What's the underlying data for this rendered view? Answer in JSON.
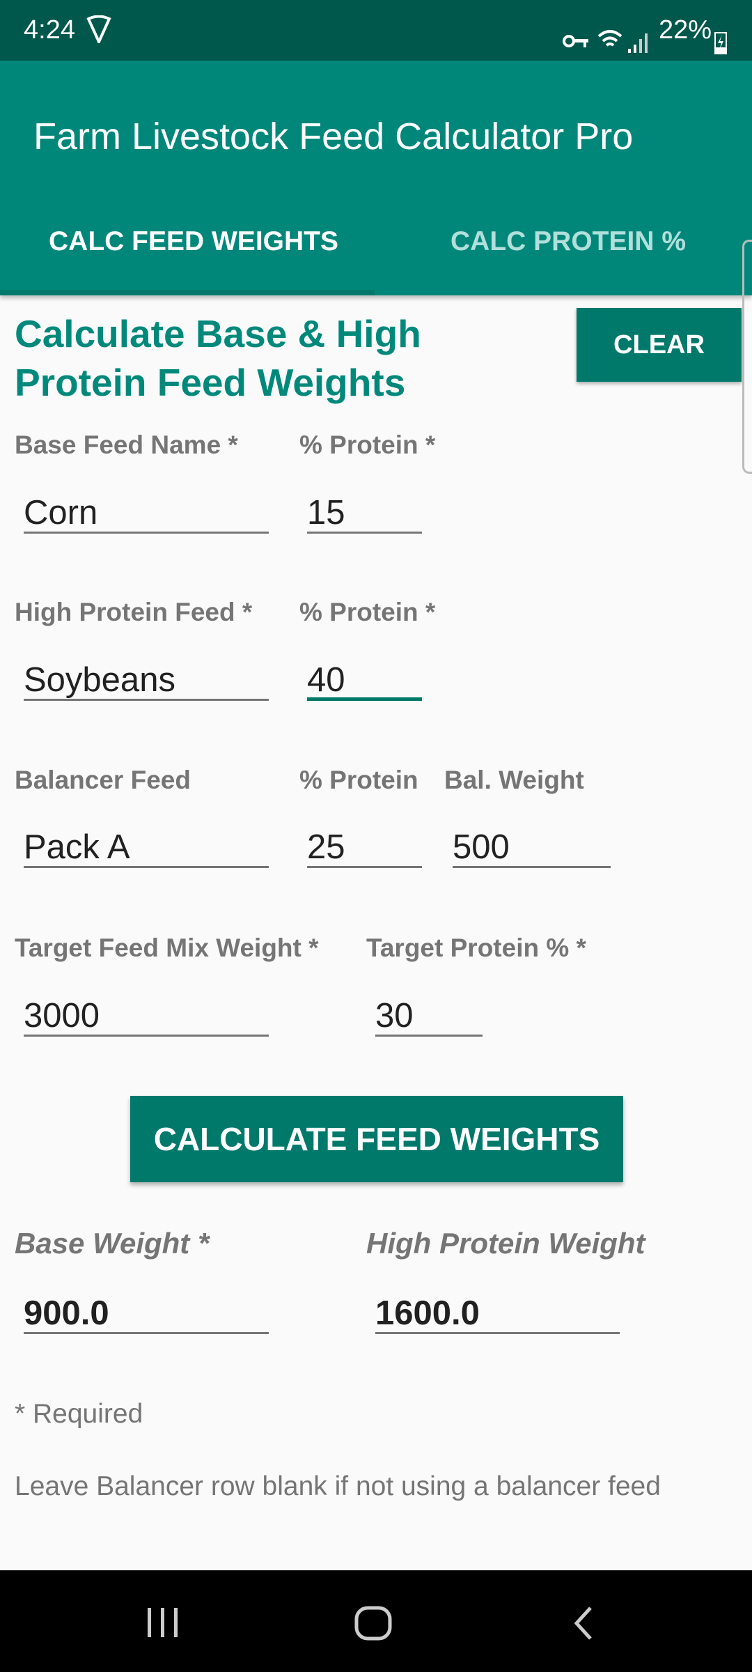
{
  "status_bar": {
    "time": "4:24",
    "battery": "22%",
    "icons": [
      "vpn-shield-icon",
      "key-icon",
      "wifi-icon",
      "signal-icon",
      "battery-charging-icon"
    ]
  },
  "app": {
    "title": "Farm Livestock Feed Calculator Pro",
    "accent": "#00877a"
  },
  "tabs": [
    {
      "label": "CALC FEED WEIGHTS",
      "selected": true
    },
    {
      "label": "CALC PROTEIN %",
      "selected": false
    }
  ],
  "form": {
    "heading": "Calculate Base & High Protein Feed Weights",
    "clear_label": "CLEAR",
    "base_feed_label": "Base Feed Name *",
    "base_feed_value": "Corn",
    "base_protein_label": "% Protein *",
    "base_protein_value": "15",
    "high_feed_label": "High Protein Feed *",
    "high_feed_value": "Soybeans",
    "high_protein_label": "% Protein *",
    "high_protein_value": "40",
    "balancer_label": "Balancer Feed",
    "balancer_value": "Pack A",
    "balancer_protein_label": "% Protein",
    "balancer_protein_value": "25",
    "bal_weight_label": "Bal. Weight",
    "bal_weight_value": "500",
    "target_weight_label": "Target Feed Mix Weight *",
    "target_weight_value": "3000",
    "target_protein_label": "Target Protein % *",
    "target_protein_value": "30",
    "calculate_label": "CALCULATE FEED WEIGHTS",
    "base_weight_label": "Base Weight *",
    "base_weight_value": "900.0",
    "high_weight_label": "High Protein Weight",
    "high_weight_value": "1600.0",
    "required_note": "* Required",
    "balancer_note": "Leave Balancer row blank if not using a balancer feed"
  }
}
